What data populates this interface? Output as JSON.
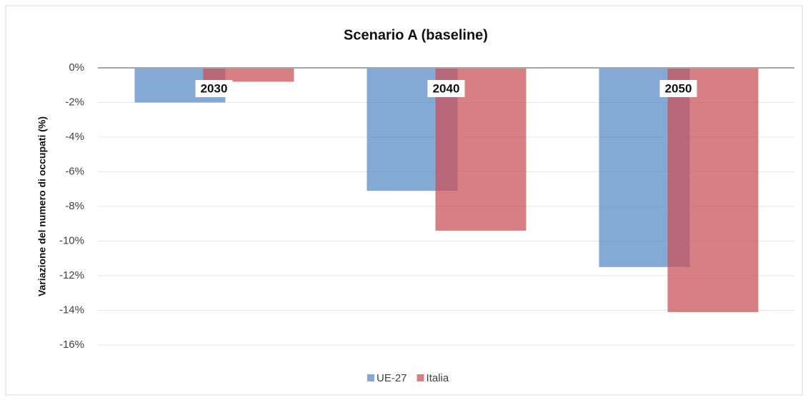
{
  "chart_data": {
    "type": "bar",
    "title": "Scenario A (baseline)",
    "y_label": "Variazione del numero di occupati (%)",
    "categories": [
      "2030",
      "2040",
      "2050"
    ],
    "series": [
      {
        "name": "UE-27",
        "color": "#5b8cc7",
        "values": [
          -2.0,
          -7.1,
          -11.5
        ]
      },
      {
        "name": "Italia",
        "color": "#c9545a",
        "values": [
          -0.8,
          -9.4,
          -14.1
        ]
      }
    ],
    "ylim": [
      -16,
      0
    ],
    "yticks": [
      {
        "value": 0,
        "label": "0%"
      },
      {
        "value": -2,
        "label": "-2%"
      },
      {
        "value": -4,
        "label": "-4%"
      },
      {
        "value": -6,
        "label": "-6%"
      },
      {
        "value": -8,
        "label": "-8%"
      },
      {
        "value": -10,
        "label": "-10%"
      },
      {
        "value": -12,
        "label": "-12%"
      },
      {
        "value": -14,
        "label": "-14%"
      },
      {
        "value": -16,
        "label": "-16%"
      }
    ],
    "grid": true,
    "legend": "bottom"
  }
}
